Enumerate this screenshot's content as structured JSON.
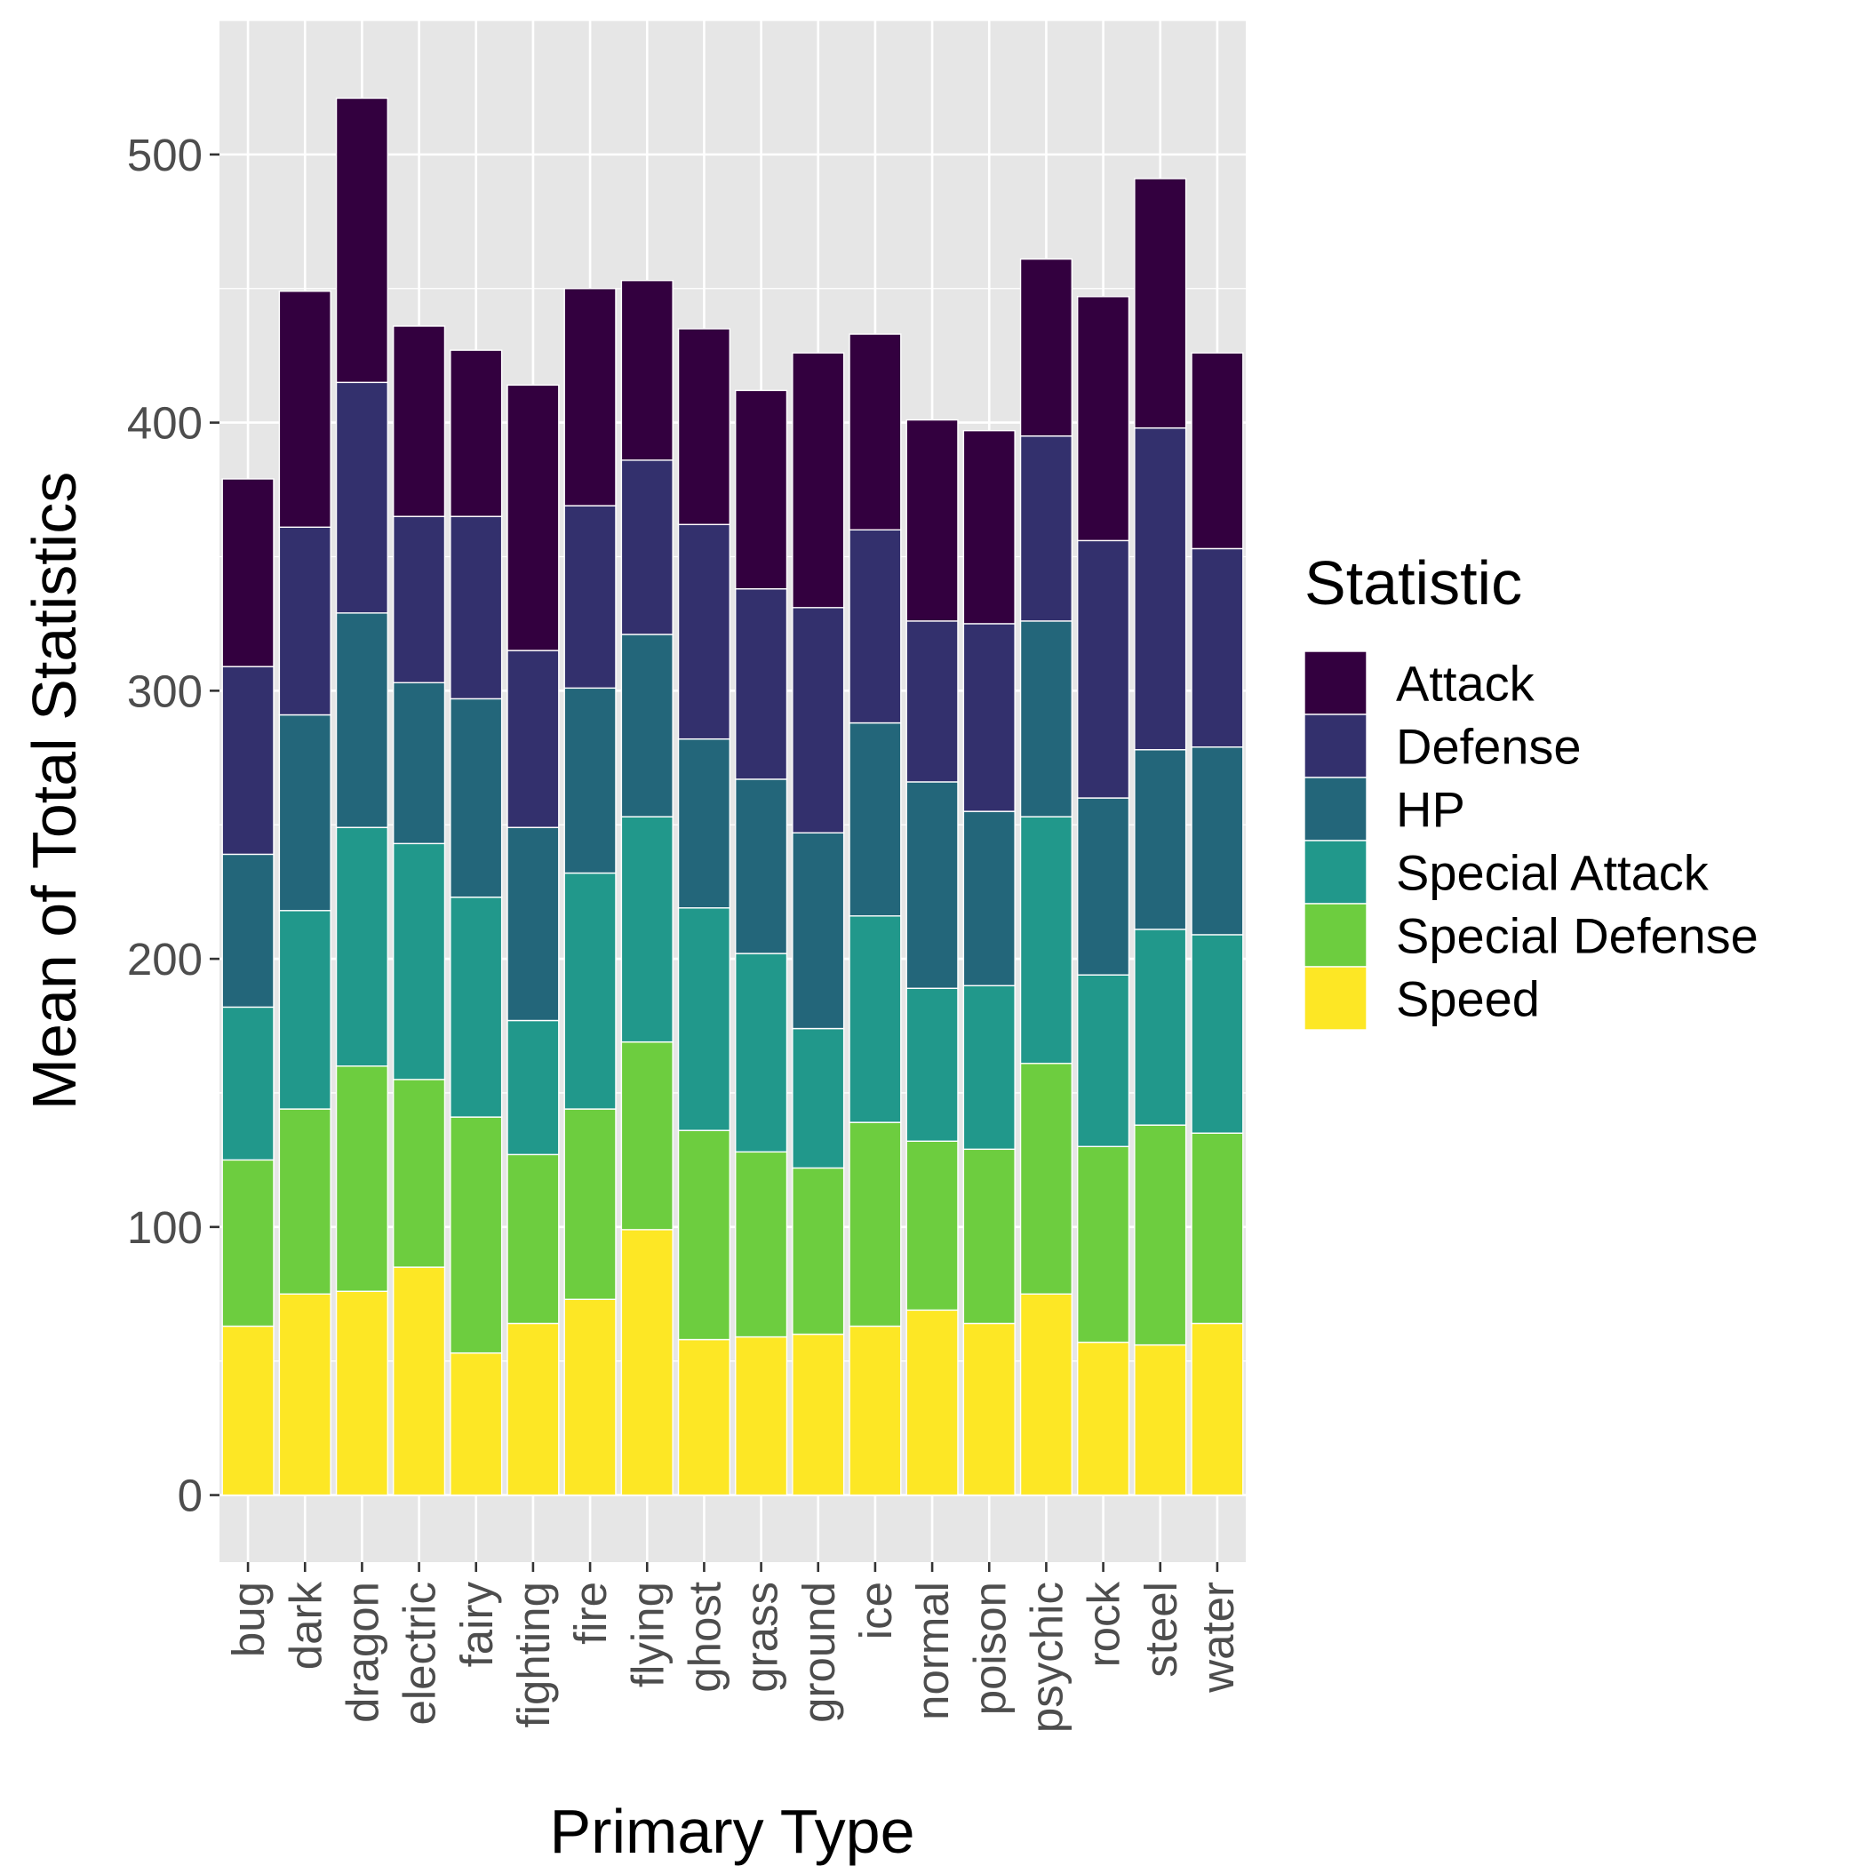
{
  "chart_data": {
    "type": "bar",
    "stacked": true,
    "categories": [
      "bug",
      "dark",
      "dragon",
      "electric",
      "fairy",
      "fighting",
      "fire",
      "flying",
      "ghost",
      "grass",
      "ground",
      "ice",
      "normal",
      "poison",
      "psychic",
      "rock",
      "steel",
      "water"
    ],
    "series": [
      {
        "name": "Speed",
        "color": "#fde725",
        "values": [
          63,
          75,
          76,
          85,
          53,
          64,
          73,
          99,
          58,
          59,
          60,
          63,
          69,
          64,
          75,
          57,
          56,
          64
        ]
      },
      {
        "name": "Special Defense",
        "color": "#6dcd3f",
        "values": [
          62,
          69,
          84,
          70,
          88,
          63,
          71,
          70,
          78,
          69,
          62,
          76,
          63,
          65,
          86,
          73,
          82,
          71
        ]
      },
      {
        "name": "Special Attack",
        "color": "#21988b",
        "values": [
          57,
          74,
          89,
          88,
          82,
          50,
          88,
          84,
          83,
          74,
          52,
          77,
          57,
          61,
          92,
          64,
          73,
          74
        ]
      },
      {
        "name": "HP",
        "color": "#23667a",
        "values": [
          57,
          73,
          80,
          60,
          74,
          72,
          69,
          68,
          63,
          65,
          73,
          72,
          77,
          65,
          73,
          66,
          67,
          70
        ]
      },
      {
        "name": "Defense",
        "color": "#33306d",
        "values": [
          70,
          70,
          86,
          62,
          68,
          66,
          68,
          65,
          80,
          71,
          84,
          72,
          60,
          70,
          69,
          96,
          120,
          74
        ]
      },
      {
        "name": "Attack",
        "color": "#33003f",
        "values": [
          70,
          88,
          106,
          71,
          62,
          99,
          81,
          67,
          73,
          74,
          95,
          73,
          75,
          72,
          66,
          91,
          93,
          73
        ]
      }
    ],
    "legend_order": [
      "Attack",
      "Defense",
      "HP",
      "Special Attack",
      "Special Defense",
      "Speed"
    ],
    "xlabel": "Primary Type",
    "ylabel": "Mean of Total Statistics",
    "legend_title": "Statistic",
    "legend_position": "right",
    "ylim": [
      -25,
      550
    ],
    "yticks": [
      0,
      100,
      200,
      300,
      400,
      500
    ],
    "grid": true
  }
}
